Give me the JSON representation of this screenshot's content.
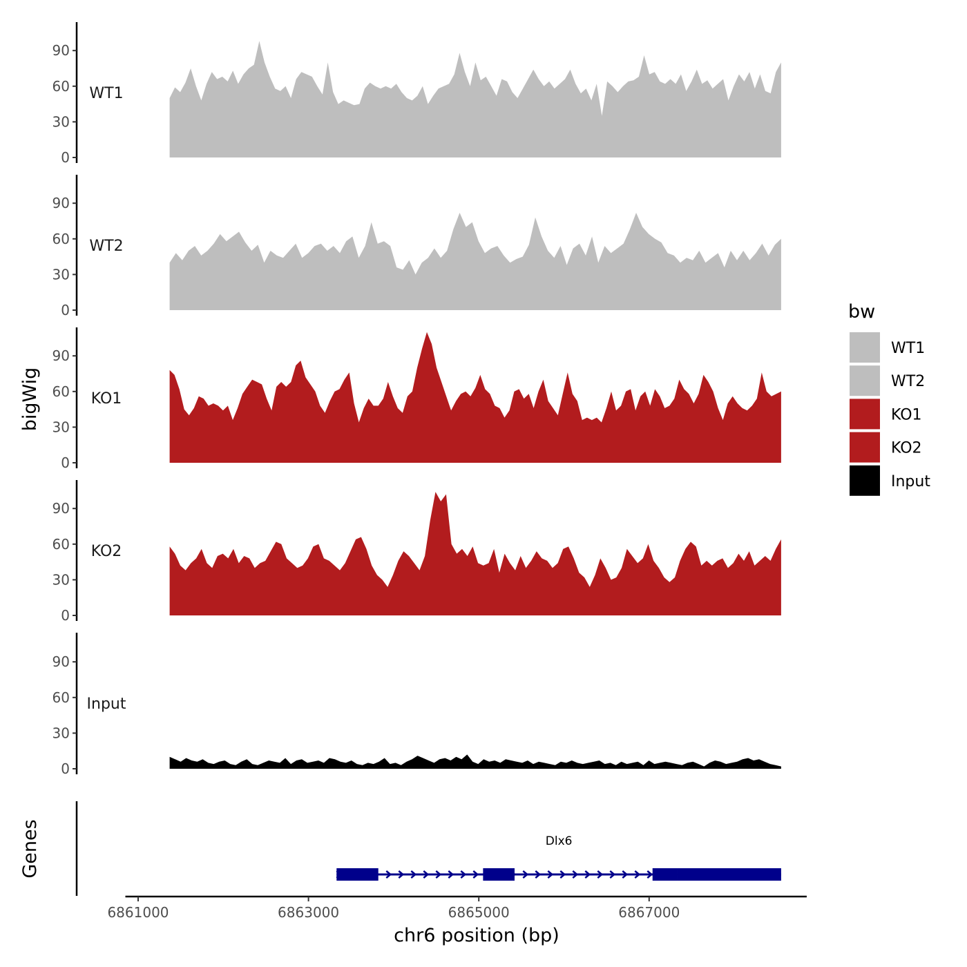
{
  "chart_data": {
    "type": "area",
    "ylabel": "bigWig",
    "xlabel": "chr6 position (bp)",
    "ylim": [
      0,
      110
    ],
    "yticks": [
      0,
      30,
      60,
      90
    ],
    "xlim": [
      6860850,
      6868850
    ],
    "xticks": [
      6861000,
      6863000,
      6865000,
      6867000
    ],
    "x_start": 6861370,
    "x_end": 6868550,
    "grid": false,
    "legend": {
      "title": "bw",
      "placement": "right",
      "items": [
        {
          "label": "WT1",
          "color": "#bebebe"
        },
        {
          "label": "WT2",
          "color": "#bebebe"
        },
        {
          "label": "KO1",
          "color": "#b21c1e"
        },
        {
          "label": "KO2",
          "color": "#b21c1e"
        },
        {
          "label": "Input",
          "color": "#000000"
        }
      ]
    },
    "series": [
      {
        "name": "WT1",
        "color": "#bebebe",
        "values": [
          50,
          59,
          55,
          63,
          75,
          60,
          48,
          62,
          72,
          66,
          68,
          64,
          73,
          62,
          70,
          75,
          78,
          98,
          80,
          68,
          58,
          56,
          60,
          50,
          66,
          72,
          70,
          68,
          60,
          53,
          80,
          55,
          45,
          48,
          46,
          44,
          45,
          58,
          63,
          60,
          58,
          60,
          58,
          62,
          55,
          50,
          48,
          52,
          60,
          45,
          52,
          58,
          60,
          62,
          70,
          88,
          72,
          60,
          80,
          65,
          68,
          60,
          52,
          66,
          64,
          55,
          50,
          58,
          66,
          74,
          66,
          60,
          64,
          58,
          62,
          66,
          74,
          62,
          54,
          58,
          48,
          62,
          35,
          64,
          60,
          55,
          60,
          64,
          65,
          68,
          86,
          70,
          72,
          64,
          62,
          66,
          62,
          70,
          56,
          64,
          74,
          62,
          65,
          58,
          62,
          66,
          48,
          60,
          70,
          64,
          72,
          58,
          70,
          56,
          54,
          72,
          80
        ]
      },
      {
        "name": "WT2",
        "color": "#bebebe",
        "values": [
          40,
          48,
          42,
          50,
          54,
          46,
          50,
          56,
          64,
          58,
          62,
          66,
          57,
          50,
          55,
          40,
          50,
          46,
          44,
          50,
          56,
          44,
          48,
          54,
          56,
          50,
          54,
          48,
          58,
          62,
          44,
          54,
          74,
          56,
          58,
          54,
          36,
          34,
          42,
          30,
          40,
          44,
          52,
          44,
          50,
          68,
          82,
          70,
          74,
          58,
          48,
          52,
          54,
          46,
          40,
          43,
          45,
          55,
          78,
          62,
          50,
          44,
          54,
          38,
          52,
          56,
          46,
          62,
          40,
          54,
          48,
          52,
          56,
          68,
          82,
          70,
          64,
          60,
          57,
          48,
          46,
          40,
          44,
          42,
          50,
          40,
          44,
          48,
          36,
          50,
          42,
          50,
          42,
          48,
          56,
          46,
          55,
          60
        ]
      },
      {
        "name": "KO1",
        "color": "#b21c1e",
        "values": [
          78,
          74,
          62,
          45,
          40,
          46,
          56,
          54,
          48,
          50,
          48,
          44,
          48,
          36,
          46,
          58,
          64,
          70,
          68,
          66,
          54,
          44,
          64,
          68,
          64,
          68,
          82,
          86,
          72,
          66,
          60,
          48,
          42,
          52,
          60,
          62,
          70,
          76,
          50,
          34,
          46,
          54,
          48,
          48,
          54,
          68,
          56,
          46,
          42,
          56,
          60,
          80,
          96,
          110,
          100,
          80,
          68,
          56,
          44,
          52,
          58,
          60,
          56,
          63,
          74,
          62,
          58,
          48,
          46,
          38,
          44,
          60,
          62,
          54,
          58,
          46,
          60,
          70,
          52,
          46,
          40,
          58,
          76,
          58,
          52,
          36,
          38,
          36,
          38,
          34,
          46,
          60,
          44,
          48,
          60,
          62,
          44,
          56,
          60,
          48,
          62,
          56,
          46,
          48,
          54,
          70,
          62,
          58,
          50,
          58,
          74,
          68,
          60,
          46,
          36,
          50,
          56,
          50,
          46,
          44,
          48,
          54,
          76,
          60,
          56,
          58,
          60
        ]
      },
      {
        "name": "KO2",
        "color": "#b21c1e",
        "values": [
          58,
          52,
          42,
          38,
          44,
          48,
          56,
          44,
          40,
          50,
          52,
          48,
          56,
          44,
          50,
          48,
          40,
          44,
          46,
          54,
          62,
          60,
          48,
          44,
          40,
          42,
          48,
          58,
          60,
          48,
          46,
          42,
          38,
          44,
          54,
          64,
          66,
          56,
          42,
          34,
          30,
          24,
          34,
          46,
          54,
          50,
          44,
          38,
          50,
          80,
          104,
          96,
          102,
          60,
          52,
          56,
          50,
          58,
          44,
          42,
          44,
          56,
          36,
          52,
          44,
          38,
          50,
          40,
          46,
          54,
          48,
          46,
          40,
          44,
          56,
          58,
          48,
          36,
          32,
          24,
          34,
          48,
          40,
          30,
          32,
          40,
          56,
          50,
          44,
          48,
          60,
          46,
          40,
          32,
          28,
          32,
          46,
          56,
          62,
          58,
          42,
          46,
          42,
          46,
          48,
          40,
          44,
          52,
          46,
          54,
          42,
          46,
          50,
          46,
          56,
          64
        ]
      },
      {
        "name": "Input",
        "color": "#000000",
        "values": [
          10,
          8,
          6,
          9,
          7,
          6,
          8,
          5,
          4,
          6,
          7,
          4,
          3,
          6,
          8,
          4,
          3,
          5,
          7,
          6,
          5,
          9,
          4,
          7,
          8,
          5,
          6,
          7,
          5,
          9,
          8,
          6,
          5,
          7,
          4,
          3,
          5,
          4,
          6,
          9,
          4,
          5,
          3,
          6,
          8,
          11,
          9,
          7,
          5,
          8,
          9,
          7,
          10,
          8,
          12,
          6,
          4,
          8,
          6,
          7,
          5,
          8,
          7,
          6,
          5,
          7,
          4,
          6,
          5,
          4,
          3,
          6,
          5,
          7,
          5,
          4,
          5,
          6,
          7,
          4,
          5,
          3,
          6,
          4,
          5,
          6,
          3,
          7,
          4,
          5,
          6,
          5,
          4,
          3,
          5,
          6,
          4,
          2,
          5,
          7,
          6,
          4,
          5,
          6,
          8,
          9,
          7,
          8,
          6,
          4,
          3,
          2
        ]
      }
    ],
    "track_labels": [
      "WT1",
      "WT2",
      "KO1",
      "KO2",
      "Input"
    ],
    "genes_track": {
      "label": "Genes",
      "color": "#00008b",
      "genes": [
        {
          "name": "Dlx6",
          "start": 6863330,
          "end": 6868550,
          "strand": "+",
          "exons": [
            [
              6863330,
              6863820
            ],
            [
              6865050,
              6865420
            ],
            [
              6867040,
              6867330
            ],
            [
              6867330,
              6868550
            ]
          ]
        }
      ]
    }
  }
}
